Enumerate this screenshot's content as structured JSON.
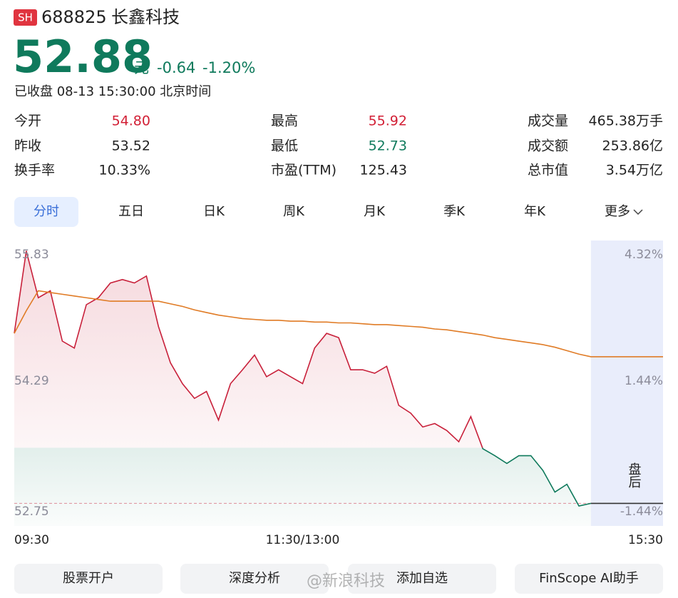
{
  "header": {
    "exchange": "SH",
    "code": "688825",
    "name": "长鑫科技",
    "price": "52.88",
    "unit": "元",
    "change": "-0.64",
    "change_pct": "-1.20%",
    "status": "已收盘 08-13 15:30:00 北京时间",
    "color": "#0f7a5c"
  },
  "stats": [
    {
      "label": "今开",
      "value": "54.80",
      "color": "#d21f35"
    },
    {
      "label": "最高",
      "value": "55.92",
      "color": "#d21f35"
    },
    {
      "label": "成交量",
      "value": "465.38万手",
      "color": "#222222"
    },
    {
      "label": "昨收",
      "value": "53.52",
      "color": "#222222"
    },
    {
      "label": "最低",
      "value": "52.73",
      "color": "#0f7a5c"
    },
    {
      "label": "成交额",
      "value": "253.86亿",
      "color": "#222222"
    },
    {
      "label": "换手率",
      "value": "10.33%",
      "color": "#222222"
    },
    {
      "label": "市盈(TTM)",
      "value": "125.43",
      "color": "#222222"
    },
    {
      "label": "总市值",
      "value": "3.54万亿",
      "color": "#222222"
    }
  ],
  "tabs": {
    "items": [
      "分时",
      "五日",
      "日K",
      "周K",
      "月K",
      "季K",
      "年K",
      "更多"
    ],
    "active": 0
  },
  "chart_data": {
    "type": "line",
    "x": [
      0,
      5,
      10,
      15,
      20,
      25,
      30,
      35,
      40,
      45,
      50,
      55,
      60,
      65,
      70,
      75,
      80,
      85,
      90,
      95,
      100,
      105,
      110,
      115,
      120,
      125,
      130,
      135,
      140,
      145,
      150,
      155,
      160,
      165,
      170,
      175,
      180,
      185,
      190,
      195,
      200,
      205,
      210,
      215,
      220,
      225,
      230,
      235,
      240
    ],
    "series": [
      {
        "values": [
          54.84,
          55.79,
          55.25,
          55.33,
          54.75,
          54.67,
          55.17,
          55.25,
          55.42,
          55.46,
          55.42,
          55.5,
          54.92,
          54.5,
          54.26,
          54.09,
          54.17,
          53.84,
          54.26,
          54.42,
          54.59,
          54.34,
          54.42,
          54.34,
          54.26,
          54.67,
          54.84,
          54.79,
          54.42,
          54.42,
          54.38,
          54.46,
          54.01,
          53.92,
          53.76,
          53.8,
          53.72,
          53.59,
          53.88,
          53.51,
          53.43,
          53.34,
          53.43,
          53.43,
          53.26,
          53.01,
          53.1,
          52.85,
          52.88
        ],
        "color": "#c8203a",
        "color_down": "#0f7a5c"
      },
      {
        "values": [
          54.84,
          55.1,
          55.33,
          55.31,
          55.29,
          55.27,
          55.25,
          55.23,
          55.21,
          55.21,
          55.21,
          55.21,
          55.21,
          55.18,
          55.15,
          55.11,
          55.08,
          55.05,
          55.03,
          55.01,
          55.0,
          54.99,
          54.99,
          54.98,
          54.98,
          54.97,
          54.97,
          54.96,
          54.96,
          54.95,
          54.94,
          54.94,
          54.93,
          54.92,
          54.91,
          54.89,
          54.88,
          54.86,
          54.84,
          54.82,
          54.79,
          54.77,
          54.75,
          54.73,
          54.71,
          54.68,
          54.64,
          54.6,
          54.57
        ],
        "color": "#e07b25"
      }
    ],
    "xlim": [
      0,
      270
    ],
    "xticks": [
      {
        "value": 0,
        "label": "09:30"
      },
      {
        "value": 120,
        "label": "11:30/13:00"
      },
      {
        "value": 270,
        "label": "15:30"
      }
    ],
    "ylim": [
      52.62,
      55.91
    ],
    "yticks": [
      55.83,
      54.29,
      52.75
    ],
    "y2lim": [
      -1.68,
      4.47
    ],
    "y2ticks": [
      {
        "value": 4.32,
        "label": "4.32%"
      },
      {
        "value": 1.44,
        "label": "1.44%"
      },
      {
        "value": -1.44,
        "label": "-1.44%"
      }
    ],
    "after_hours": {
      "start": 240,
      "label": "盘后",
      "color": "#e9edfb"
    }
  },
  "buttons": [
    "股票开户",
    "深度分析",
    "添加自选",
    "FinScope AI助手"
  ],
  "watermark": "@新浪科技"
}
